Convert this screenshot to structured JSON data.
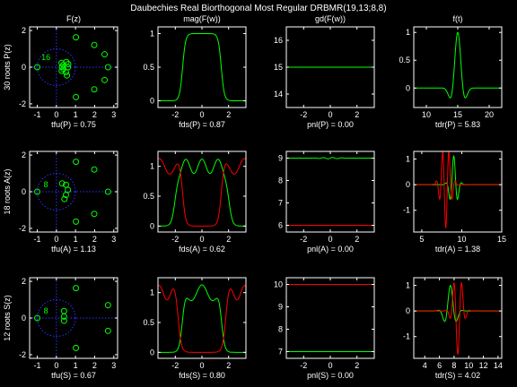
{
  "title": "Daubechies Real Biorthogonal Most Regular DRBMR(19,13;8,8)",
  "colors": {
    "background": "#000000",
    "axes": "#ffffff",
    "green": "#00ff00",
    "red": "#ff0000",
    "blue": "#3030ff"
  },
  "chart_data": [
    {
      "id": "p-roots",
      "type": "scatter",
      "title": "F(z)",
      "ylabel": "30 roots P(z)",
      "xlabel": "tfu(P) = 0.75",
      "xlim": [
        -1.4,
        3.2
      ],
      "ylim": [
        -2.2,
        2.2
      ],
      "xticks": [
        "-1",
        "0",
        "1",
        "2",
        "3"
      ],
      "yticks": [
        "-2",
        "0",
        "2"
      ],
      "annotation": {
        "text": "16",
        "x": -0.55,
        "y": 0.4
      },
      "points": [
        [
          1.02,
          1.63
        ],
        [
          1.98,
          1.21
        ],
        [
          2.52,
          0.7
        ],
        [
          2.7,
          0.0
        ],
        [
          2.52,
          -0.7
        ],
        [
          1.98,
          -1.21
        ],
        [
          1.02,
          -1.63
        ],
        [
          0.27,
          0.23
        ],
        [
          0.3,
          0.02
        ],
        [
          0.28,
          -0.2
        ],
        [
          0.36,
          0.13
        ],
        [
          0.37,
          -0.1
        ],
        [
          0.52,
          0.28
        ],
        [
          0.5,
          -0.27
        ],
        [
          0.6,
          0.0
        ],
        [
          0.62,
          0.17
        ],
        [
          0.55,
          -0.45
        ],
        [
          -1.0,
          0.0
        ]
      ]
    },
    {
      "id": "p-mag",
      "type": "line",
      "title": "mag(F(w))",
      "xlabel": "fds(P) = 0.87",
      "xlim": [
        -3.3,
        3.3
      ],
      "ylim": [
        -0.1,
        1.1
      ],
      "xticks": [
        "-2",
        "0",
        "2"
      ],
      "yticks": [
        "0",
        "0.5",
        "1"
      ],
      "series": [
        {
          "color": "#00ff00",
          "kind": "flat",
          "center": 0,
          "half_width": 1.45,
          "sharpness": 2.2,
          "height": 1
        }
      ]
    },
    {
      "id": "p-gd",
      "type": "line",
      "title": "gd(F(w))",
      "xlabel": "pnl(P) = 0.00",
      "xlim": [
        -3.3,
        3.3
      ],
      "ylim": [
        13.5,
        16.5
      ],
      "xticks": [
        "-2",
        "0",
        "2"
      ],
      "yticks": [
        "14",
        "15",
        "16"
      ],
      "series": [
        {
          "color": "#00ff00",
          "kind": "const",
          "value": 15.0
        }
      ]
    },
    {
      "id": "p-ft",
      "type": "line",
      "title": "f(t)",
      "xlabel": "tdr(P) = 5.83",
      "xlim": [
        8,
        22
      ],
      "ylim": [
        -0.35,
        1.1
      ],
      "xticks": [
        "10",
        "15",
        "20"
      ],
      "yticks": [
        "0",
        "0.5",
        "1"
      ],
      "series": [
        {
          "color": "#00ff00",
          "kind": "wavelet",
          "center": 15,
          "amp": 1.0,
          "width": 1.05,
          "freq": 1.55
        }
      ]
    },
    {
      "id": "a-roots",
      "type": "scatter",
      "ylabel": "18 roots A(z)",
      "xlabel": "tfu(A) = 1.13",
      "xlim": [
        -1.4,
        3.2
      ],
      "ylim": [
        -2.2,
        2.2
      ],
      "xticks": [
        "-1",
        "0",
        "1",
        "2",
        "3"
      ],
      "yticks": [
        "-2",
        "0",
        "2"
      ],
      "annotation": {
        "text": "8",
        "x": -0.55,
        "y": 0.25
      },
      "points": [
        [
          1.02,
          1.63
        ],
        [
          1.98,
          1.21
        ],
        [
          2.7,
          0.0
        ],
        [
          1.98,
          -1.21
        ],
        [
          1.02,
          -1.63
        ],
        [
          0.3,
          0.45
        ],
        [
          0.5,
          0.38
        ],
        [
          0.6,
          0.1
        ],
        [
          0.5,
          -0.18
        ],
        [
          0.42,
          -0.4
        ],
        [
          -1.0,
          0.0
        ]
      ]
    },
    {
      "id": "a-mag",
      "type": "line",
      "xlabel": "fds(A) = 0.62",
      "xlim": [
        -3.3,
        3.3
      ],
      "ylim": [
        -0.1,
        1.25
      ],
      "xticks": [
        "-2",
        "0",
        "2"
      ],
      "yticks": [
        "0",
        "0.5",
        "1"
      ],
      "series": [
        {
          "color": "#00ff00",
          "kind": "lowpass",
          "base": 1.0,
          "edge": 2.0,
          "sharpness": 2.0,
          "ripple": 0.12,
          "ripple_freq": 5.2
        },
        {
          "color": "#ff0000",
          "kind": "highpass",
          "base": 1.0,
          "edge": 1.45,
          "sharpness": 2.0,
          "ripple": 0.13,
          "ripple_freq": 4.0
        }
      ]
    },
    {
      "id": "a-gd",
      "type": "line",
      "xlabel": "pnl(A) = 0.00",
      "xlim": [
        -3.3,
        3.3
      ],
      "ylim": [
        5.7,
        9.3
      ],
      "xticks": [
        "-2",
        "0",
        "2"
      ],
      "yticks": [
        "6",
        "7",
        "8",
        "9"
      ],
      "series": [
        {
          "color": "#00ff00",
          "kind": "const",
          "value": 9.0,
          "wiggle": 0.03
        },
        {
          "color": "#ff0000",
          "kind": "const",
          "value": 6.0
        }
      ]
    },
    {
      "id": "a-ft",
      "type": "line",
      "xlabel": "tdr(A) = 1.38",
      "xlim": [
        4,
        15
      ],
      "ylim": [
        -1.85,
        1.3
      ],
      "xticks": [
        "5",
        "10",
        "15"
      ],
      "yticks": [
        "-1",
        "0",
        "1"
      ],
      "series": [
        {
          "color": "#00ff00",
          "kind": "wavelet",
          "center": 9,
          "amp": 1.12,
          "width": 0.6,
          "freq": 1.9
        },
        {
          "color": "#ff0000",
          "kind": "wavelet",
          "center": 8.0,
          "amp": -1.7,
          "width": 0.75,
          "freq": 3.1
        }
      ]
    },
    {
      "id": "s-roots",
      "type": "scatter",
      "ylabel": "12 roots S(z)",
      "xlabel": "tfu(S) = 0.67",
      "xlim": [
        -1.4,
        3.2
      ],
      "ylim": [
        -2.2,
        2.2
      ],
      "xticks": [
        "-1",
        "0",
        "1",
        "2",
        "3"
      ],
      "yticks": [
        "-2",
        "0",
        "2"
      ],
      "annotation": {
        "text": "8",
        "x": -0.55,
        "y": 0.25
      },
      "points": [
        [
          1.02,
          1.63
        ],
        [
          2.7,
          0.7
        ],
        [
          2.7,
          -0.7
        ],
        [
          1.02,
          -1.63
        ],
        [
          0.4,
          0.38
        ],
        [
          0.4,
          0.08
        ],
        [
          0.4,
          -0.15
        ],
        [
          -1.0,
          0.0
        ]
      ]
    },
    {
      "id": "s-mag",
      "type": "line",
      "xlabel": "fds(S) = 0.80",
      "xlim": [
        -3.3,
        3.3
      ],
      "ylim": [
        -0.1,
        1.25
      ],
      "xticks": [
        "-2",
        "0",
        "2"
      ],
      "yticks": [
        "0",
        "0.5",
        "1"
      ],
      "series": [
        {
          "color": "#00ff00",
          "kind": "lowpass",
          "base": 1.0,
          "edge": 1.45,
          "sharpness": 2.0,
          "ripple": 0.13,
          "ripple_freq": 4.0
        },
        {
          "color": "#ff0000",
          "kind": "highpass",
          "base": 1.0,
          "edge": 1.75,
          "sharpness": 2.0,
          "ripple": 0.12,
          "ripple_freq": 5.5
        }
      ]
    },
    {
      "id": "s-gd",
      "type": "line",
      "xlabel": "pnl(S) = 0.00",
      "xlim": [
        -3.3,
        3.3
      ],
      "ylim": [
        6.7,
        10.3
      ],
      "xticks": [
        "-2",
        "0",
        "2"
      ],
      "yticks": [
        "7",
        "8",
        "9",
        "10"
      ],
      "series": [
        {
          "color": "#ff0000",
          "kind": "const",
          "value": 10.0
        },
        {
          "color": "#00ff00",
          "kind": "const",
          "value": 7.0
        }
      ]
    },
    {
      "id": "s-ft",
      "type": "line",
      "xlabel": "tdr(S) = 4.02",
      "xlim": [
        2.5,
        14.5
      ],
      "ylim": [
        -1.85,
        1.3
      ],
      "xticks": [
        "4",
        "6",
        "8",
        "10",
        "12",
        "14"
      ],
      "yticks": [
        "-1",
        "0",
        "1"
      ],
      "series": [
        {
          "color": "#00ff00",
          "kind": "wavelet",
          "center": 7.5,
          "amp": 1.0,
          "width": 0.9,
          "freq": 1.6
        },
        {
          "color": "#ff0000",
          "kind": "wavelet",
          "center": 8.5,
          "amp": -1.7,
          "width": 0.8,
          "freq": 2.4
        }
      ]
    }
  ]
}
